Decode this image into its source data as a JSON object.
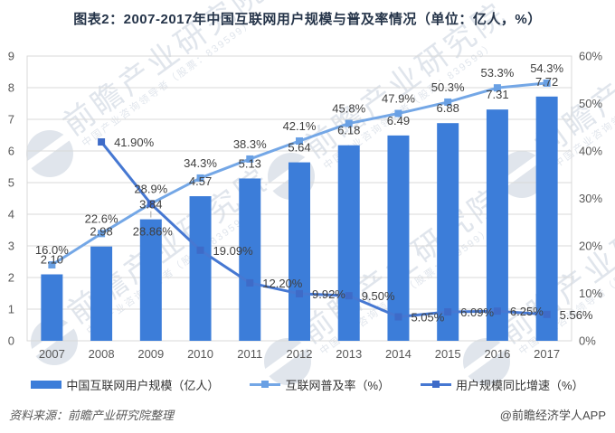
{
  "title": "图表2：2007-2017年中国互联网用户规模与普及率情况（单位：亿人，%）",
  "footer": {
    "source": "资料来源：前瞻产业研究院整理",
    "credit": "@前瞻经济学人APP"
  },
  "watermark": {
    "brand": "前瞻产业研究院",
    "tagline": "中国产业咨询领导者（股票：839599）",
    "logo_icon": "qianzhan-eye-logo"
  },
  "colors": {
    "bar": "#3C7DD9",
    "penetration_line": "#74A7E6",
    "penetration_marker": "#69A0E4",
    "growth_line": "#4678D2",
    "growth_marker": "#3E6BC8",
    "grid": "#D9D9D9",
    "axis_text": "#595959",
    "data_label": "#3F3F3F",
    "title_text": "#253449",
    "watermark": "#97A9C1",
    "leader_line": "#A6A6A6"
  },
  "chart_data": {
    "type": "combo-bar-line",
    "categories": [
      "2007",
      "2008",
      "2009",
      "2010",
      "2011",
      "2012",
      "2013",
      "2014",
      "2015",
      "2016",
      "2017"
    ],
    "left_axis": {
      "min": 0,
      "max": 9,
      "step": 1,
      "tick_labels": [
        "0",
        "1",
        "2",
        "3",
        "4",
        "5",
        "6",
        "7",
        "8",
        "9"
      ]
    },
    "right_axis": {
      "min": 0,
      "max": 60,
      "step": 10,
      "tick_labels": [
        "0%",
        "10%",
        "20%",
        "30%",
        "40%",
        "50%",
        "60%"
      ]
    },
    "grid": true,
    "legend_position": "bottom",
    "series": [
      {
        "name": "中国互联网用户规模（亿人）",
        "type": "bar",
        "axis": "left",
        "values": [
          2.1,
          2.98,
          3.84,
          4.57,
          5.13,
          5.64,
          6.18,
          6.49,
          6.88,
          7.31,
          7.72
        ],
        "labels": [
          "2.10",
          "2.98",
          "3.84",
          "4.57",
          "5.13",
          "5.64",
          "6.18",
          "6.49",
          "6.88",
          "7.31",
          "7.72"
        ],
        "label_leader": [
          false,
          false,
          true,
          false,
          false,
          false,
          false,
          false,
          false,
          false,
          false
        ]
      },
      {
        "name": "互联网普及率（%）",
        "type": "line",
        "axis": "right",
        "values": [
          16.0,
          22.6,
          28.9,
          34.3,
          38.3,
          42.1,
          45.8,
          47.9,
          50.3,
          53.3,
          54.3
        ],
        "labels": [
          "16.0%",
          "22.6%",
          "28.9%",
          "34.3%",
          "38.3%",
          "42.1%",
          "45.8%",
          "47.9%",
          "50.3%",
          "53.3%",
          "54.3%"
        ]
      },
      {
        "name": "用户规模同比增速（%）",
        "type": "line",
        "axis": "right",
        "values": [
          null,
          41.9,
          28.86,
          19.09,
          12.2,
          9.92,
          9.5,
          5.05,
          6.09,
          6.25,
          5.56
        ],
        "labels": [
          null,
          "41.90%",
          "28.86%",
          "19.09%",
          "12.20%",
          "9.92%",
          "9.50%",
          "5.05%",
          "6.09%",
          "6.25%",
          "5.56%"
        ],
        "label_placement": [
          null,
          "right",
          "below",
          "right",
          "right",
          "right",
          "right",
          "right",
          "right",
          "right",
          "right"
        ]
      }
    ]
  },
  "legend": {
    "items": [
      {
        "label": "中国互联网用户规模（亿人）",
        "swatch": "bar"
      },
      {
        "label": "互联网普及率（%）",
        "swatch": "penetration-line"
      },
      {
        "label": "用户规模同比增速（%）",
        "swatch": "growth-line"
      }
    ]
  }
}
